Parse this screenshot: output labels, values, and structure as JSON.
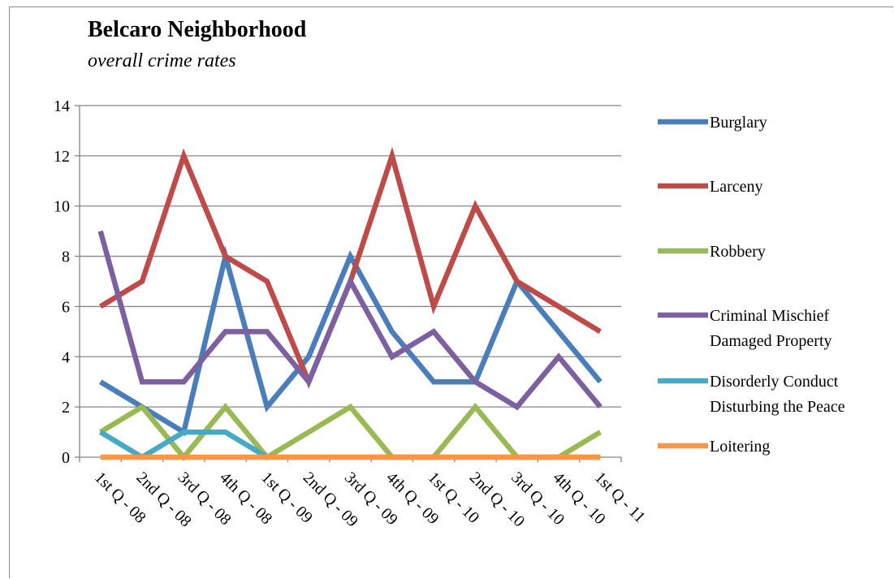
{
  "chart_data": {
    "type": "line",
    "title": "Belcaro Neighborhood",
    "subtitle": "overall crime rates",
    "xlabel": "",
    "ylabel": "",
    "ylim": [
      0,
      14
    ],
    "yticks": [
      0,
      2,
      4,
      6,
      8,
      10,
      12,
      14
    ],
    "grid": true,
    "legend_position": "right",
    "categories": [
      "1st Q - 08",
      "2nd Q - 08",
      "3rd Q - 08",
      "4th Q - 08",
      "1st Q - 09",
      "2nd Q - 09",
      "3rd Q - 09",
      "4th Q - 09",
      "1st Q - 10",
      "2nd Q - 10",
      "3rd Q - 10",
      "4th Q - 10",
      "1st Q - 11"
    ],
    "series": [
      {
        "name": "Burglary",
        "color": "#4a7ebb",
        "values": [
          3,
          2,
          1,
          8,
          2,
          4,
          8,
          5,
          3,
          3,
          7,
          5,
          3
        ]
      },
      {
        "name": "Larceny",
        "color": "#be4b48",
        "values": [
          6,
          7,
          12,
          8,
          7,
          3,
          7,
          12,
          6,
          10,
          7,
          6,
          5
        ]
      },
      {
        "name": "Robbery",
        "color": "#98b954",
        "values": [
          1,
          2,
          0,
          2,
          0,
          1,
          2,
          0,
          0,
          2,
          0,
          0,
          1
        ]
      },
      {
        "name": "Criminal Mischief Damaged Property",
        "label_lines": [
          "Criminal Mischief",
          "Damaged Property"
        ],
        "color": "#7d60a0",
        "values": [
          9,
          3,
          3,
          5,
          5,
          3,
          7,
          4,
          5,
          3,
          2,
          4,
          2
        ]
      },
      {
        "name": "Disorderly Conduct Disturbing the Peace",
        "label_lines": [
          "Disorderly Conduct",
          "Disturbing the Peace"
        ],
        "color": "#46aac5",
        "values": [
          1,
          0,
          1,
          1,
          0,
          0,
          0,
          0,
          0,
          0,
          0,
          0,
          0
        ]
      },
      {
        "name": "Loitering",
        "label_lines": [
          "Loitering"
        ],
        "color": "#f79646",
        "values": [
          0,
          0,
          0,
          0,
          0,
          0,
          0,
          0,
          0,
          0,
          0,
          0,
          0
        ]
      }
    ]
  }
}
